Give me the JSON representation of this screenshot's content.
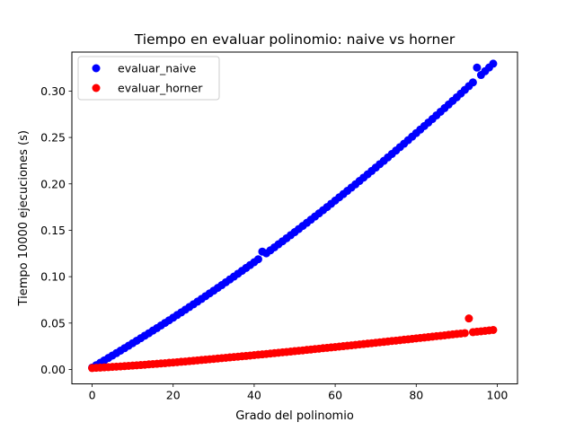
{
  "chart_data": {
    "type": "scatter",
    "title": "Tiempo en evaluar polinomio: naive vs horner",
    "xlabel": "Grado del polinomio",
    "ylabel": "Tiempo 10000 ejecuciones (s)",
    "xlim": [
      -5,
      105
    ],
    "ylim": [
      -0.0155,
      0.342
    ],
    "xticks": [
      0,
      20,
      40,
      60,
      80,
      100
    ],
    "xtick_labels": [
      "0",
      "20",
      "40",
      "60",
      "80",
      "100"
    ],
    "yticks": [
      0.0,
      0.05,
      0.1,
      0.15,
      0.2,
      0.25,
      0.3
    ],
    "ytick_labels": [
      "0.00",
      "0.05",
      "0.10",
      "0.15",
      "0.20",
      "0.25",
      "0.30"
    ],
    "grid": false,
    "legend_position": "upper-left",
    "x": [
      0,
      1,
      2,
      3,
      4,
      5,
      6,
      7,
      8,
      9,
      10,
      11,
      12,
      13,
      14,
      15,
      16,
      17,
      18,
      19,
      20,
      21,
      22,
      23,
      24,
      25,
      26,
      27,
      28,
      29,
      30,
      31,
      32,
      33,
      34,
      35,
      36,
      37,
      38,
      39,
      40,
      41,
      42,
      43,
      44,
      45,
      46,
      47,
      48,
      49,
      50,
      51,
      52,
      53,
      54,
      55,
      56,
      57,
      58,
      59,
      60,
      61,
      62,
      63,
      64,
      65,
      66,
      67,
      68,
      69,
      70,
      71,
      72,
      73,
      74,
      75,
      76,
      77,
      78,
      79,
      80,
      81,
      82,
      83,
      84,
      85,
      86,
      87,
      88,
      89,
      90,
      91,
      92,
      93,
      94,
      95,
      96,
      97,
      98,
      99
    ],
    "series": [
      {
        "name": "evaluar_naive",
        "color": "#0000ff",
        "values": [
          0.002,
          0.0046,
          0.0072,
          0.0098,
          0.0124,
          0.015,
          0.0176,
          0.0203,
          0.0229,
          0.0256,
          0.0283,
          0.031,
          0.0337,
          0.0364,
          0.0391,
          0.0419,
          0.0446,
          0.0474,
          0.0502,
          0.053,
          0.0558,
          0.0587,
          0.0615,
          0.0644,
          0.0673,
          0.0702,
          0.0731,
          0.076,
          0.079,
          0.082,
          0.0849,
          0.0879,
          0.0909,
          0.094,
          0.097,
          0.1001,
          0.1032,
          0.1063,
          0.1094,
          0.1125,
          0.1156,
          0.1188,
          0.127,
          0.1252,
          0.1284,
          0.1316,
          0.1349,
          0.1381,
          0.1414,
          0.1447,
          0.148,
          0.1513,
          0.1547,
          0.158,
          0.1614,
          0.1648,
          0.1682,
          0.1716,
          0.175,
          0.1785,
          0.182,
          0.1855,
          0.189,
          0.1925,
          0.196,
          0.1995,
          0.2031,
          0.2067,
          0.2103,
          0.2139,
          0.2175,
          0.2212,
          0.2248,
          0.2285,
          0.2322,
          0.2359,
          0.2396,
          0.2433,
          0.2471,
          0.2509,
          0.2547,
          0.2585,
          0.2623,
          0.2661,
          0.2699,
          0.2738,
          0.2777,
          0.2816,
          0.2855,
          0.2894,
          0.2933,
          0.2973,
          0.3013,
          0.3053,
          0.3093,
          0.3253,
          0.3173,
          0.3214,
          0.3254,
          0.3295
        ]
      },
      {
        "name": "evaluar_horner",
        "color": "#ff0000",
        "values": [
          0.0015,
          0.0018,
          0.002,
          0.0023,
          0.0025,
          0.0028,
          0.003,
          0.0033,
          0.0036,
          0.0039,
          0.0042,
          0.0045,
          0.0048,
          0.0051,
          0.0055,
          0.0058,
          0.0061,
          0.0065,
          0.0068,
          0.0072,
          0.0075,
          0.0079,
          0.0083,
          0.0086,
          0.009,
          0.0094,
          0.0098,
          0.0102,
          0.0106,
          0.011,
          0.0114,
          0.0118,
          0.0122,
          0.0126,
          0.013,
          0.0134,
          0.0138,
          0.0142,
          0.0146,
          0.015,
          0.0155,
          0.0159,
          0.0163,
          0.0167,
          0.0172,
          0.0176,
          0.018,
          0.0185,
          0.0189,
          0.0193,
          0.0198,
          0.0202,
          0.0206,
          0.0211,
          0.0215,
          0.022,
          0.0224,
          0.0229,
          0.0233,
          0.0238,
          0.0242,
          0.0247,
          0.0251,
          0.0256,
          0.026,
          0.0265,
          0.027,
          0.0274,
          0.0279,
          0.0283,
          0.0288,
          0.0293,
          0.0297,
          0.0302,
          0.0307,
          0.0311,
          0.0316,
          0.0321,
          0.0325,
          0.033,
          0.0335,
          0.034,
          0.0344,
          0.0349,
          0.0354,
          0.0359,
          0.0363,
          0.0368,
          0.0373,
          0.0378,
          0.0383,
          0.0387,
          0.0392,
          0.055,
          0.0402,
          0.0407,
          0.0411,
          0.0416,
          0.0421,
          0.0426
        ]
      }
    ]
  }
}
